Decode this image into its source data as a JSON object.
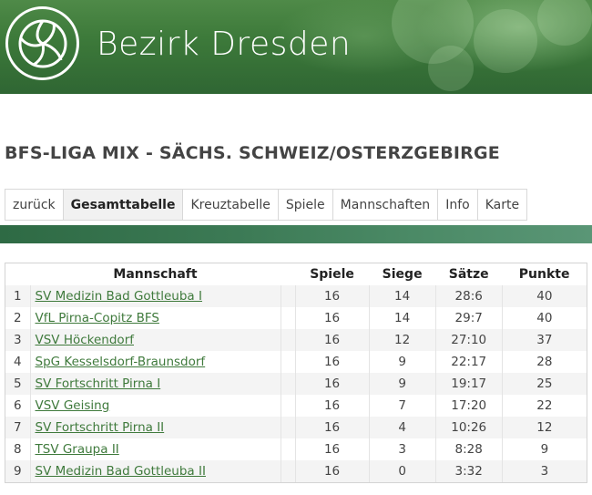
{
  "header": {
    "logo_icon": "volleyball-icon",
    "title": "Bezirk Dresden"
  },
  "league": {
    "title": "BFS-LIGA MIX - SÄCHS. SCHWEIZ/OSTERZGEBIRGE"
  },
  "tabs": [
    {
      "label": "zurück"
    },
    {
      "label": "Gesamttabelle",
      "active": true
    },
    {
      "label": "Kreuztabelle"
    },
    {
      "label": "Spiele"
    },
    {
      "label": "Mannschaften"
    },
    {
      "label": "Info"
    },
    {
      "label": "Karte"
    }
  ],
  "table": {
    "columns": {
      "team": "Mannschaft",
      "games": "Spiele",
      "wins": "Siege",
      "sets": "Sätze",
      "points": "Punkte"
    },
    "rows": [
      {
        "pos": "1",
        "team": "SV Medizin Bad Gottleuba I",
        "games": "16",
        "wins": "14",
        "sets": "28:6",
        "points": "40"
      },
      {
        "pos": "2",
        "team": "VfL Pirna-Copitz BFS",
        "games": "16",
        "wins": "14",
        "sets": "29:7",
        "points": "40"
      },
      {
        "pos": "3",
        "team": "VSV Höckendorf",
        "games": "16",
        "wins": "12",
        "sets": "27:10",
        "points": "37"
      },
      {
        "pos": "4",
        "team": "SpG Kesselsdorf-Braunsdorf",
        "games": "16",
        "wins": "9",
        "sets": "22:17",
        "points": "28"
      },
      {
        "pos": "5",
        "team": "SV Fortschritt Pirna I",
        "games": "16",
        "wins": "9",
        "sets": "19:17",
        "points": "25"
      },
      {
        "pos": "6",
        "team": "VSV Geising",
        "games": "16",
        "wins": "7",
        "sets": "17:20",
        "points": "22"
      },
      {
        "pos": "7",
        "team": "SV Fortschritt Pirna II",
        "games": "16",
        "wins": "4",
        "sets": "10:26",
        "points": "12"
      },
      {
        "pos": "8",
        "team": "TSV Graupa II",
        "games": "16",
        "wins": "3",
        "sets": "8:28",
        "points": "9"
      },
      {
        "pos": "9",
        "team": "SV Medizin Bad Gottleuba II",
        "games": "16",
        "wins": "0",
        "sets": "3:32",
        "points": "3"
      }
    ]
  }
}
